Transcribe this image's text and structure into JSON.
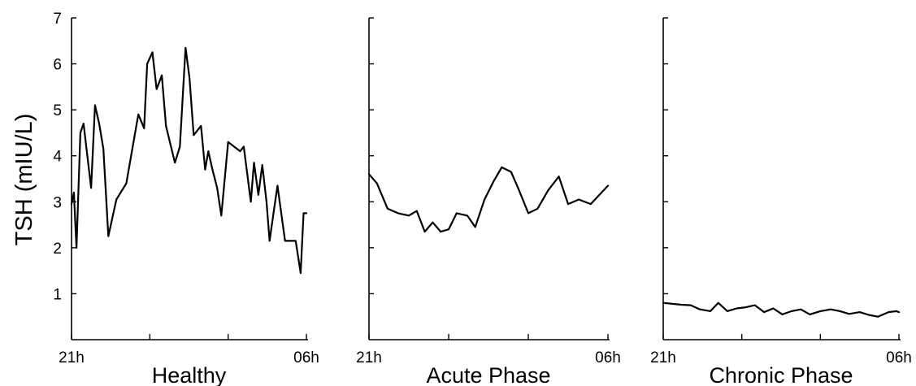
{
  "chart_data": {
    "type": "line",
    "ylabel": "TSH (mIU/L)",
    "ylim": [
      0,
      7
    ],
    "yticks": [
      1,
      2,
      3,
      4,
      5,
      6,
      7
    ],
    "x_start_label": "21h",
    "x_end_label": "06h",
    "x_domain": [
      0,
      9
    ],
    "panels": [
      {
        "title": "Healthy",
        "x_interior_ticks": [
          3,
          6
        ],
        "series": [
          {
            "x": [
              0,
              0.09,
              0.19,
              0.34,
              0.46,
              0.75,
              0.9,
              1.06,
              1.22,
              1.41,
              1.72,
              2.1,
              2.56,
              2.78,
              2.9,
              3.1,
              3.26,
              3.46,
              3.62,
              3.96,
              4.15,
              4.37,
              4.52,
              4.68,
              4.96,
              5.12,
              5.24,
              5.4,
              5.58,
              5.74,
              6.0,
              6.46,
              6.6,
              6.87,
              6.99,
              7.16,
              7.31,
              7.47,
              7.59,
              7.74,
              7.89,
              8.18,
              8.59,
              8.78,
              8.89,
              9.05,
              9.36
            ],
            "y": [
              2.95,
              3.2,
              2.0,
              4.5,
              4.7,
              3.3,
              5.1,
              4.7,
              4.15,
              2.25,
              3.05,
              3.4,
              4.9,
              4.6,
              6.0,
              6.25,
              5.45,
              5.75,
              4.65,
              3.85,
              4.2,
              6.35,
              5.7,
              4.45,
              4.65,
              3.7,
              4.1,
              3.7,
              3.3,
              2.7,
              4.3,
              4.1,
              4.2,
              3.0,
              3.85,
              3.15,
              3.8,
              3.0,
              2.15,
              2.75,
              3.35,
              2.15,
              2.15,
              1.45,
              2.75,
              2.75,
              2.75
            ]
          }
        ]
      },
      {
        "title": "Acute Phase",
        "x_interior_ticks": [
          3,
          6
        ],
        "series": [
          {
            "x": [
              0,
              0.3,
              0.7,
              1.1,
              1.5,
              1.8,
              2.1,
              2.4,
              2.7,
              3.0,
              3.3,
              3.7,
              4.0,
              4.35,
              4.7,
              5.0,
              5.35,
              5.65,
              6.0,
              6.35,
              6.75,
              7.15,
              7.5,
              7.9,
              8.35,
              9.0
            ],
            "y": [
              3.6,
              3.4,
              2.85,
              2.75,
              2.7,
              2.8,
              2.35,
              2.55,
              2.35,
              2.4,
              2.75,
              2.7,
              2.45,
              3.05,
              3.45,
              3.75,
              3.65,
              3.25,
              2.75,
              2.85,
              3.25,
              3.55,
              2.95,
              3.05,
              2.95,
              3.35
            ]
          }
        ]
      },
      {
        "title": "Chronic Phase",
        "x_interior_ticks": [
          3,
          6
        ],
        "series": [
          {
            "x": [
              0,
              0.35,
              0.7,
              1.05,
              1.4,
              1.8,
              2.1,
              2.45,
              2.8,
              3.1,
              3.5,
              3.85,
              4.2,
              4.55,
              4.9,
              5.25,
              5.6,
              6.0,
              6.4,
              6.75,
              7.1,
              7.5,
              7.85,
              8.2,
              8.6,
              8.9,
              9.0
            ],
            "y": [
              0.8,
              0.78,
              0.76,
              0.75,
              0.66,
              0.62,
              0.8,
              0.62,
              0.68,
              0.7,
              0.75,
              0.6,
              0.68,
              0.55,
              0.62,
              0.66,
              0.55,
              0.62,
              0.66,
              0.62,
              0.56,
              0.6,
              0.54,
              0.5,
              0.6,
              0.62,
              0.6
            ]
          }
        ]
      }
    ]
  }
}
